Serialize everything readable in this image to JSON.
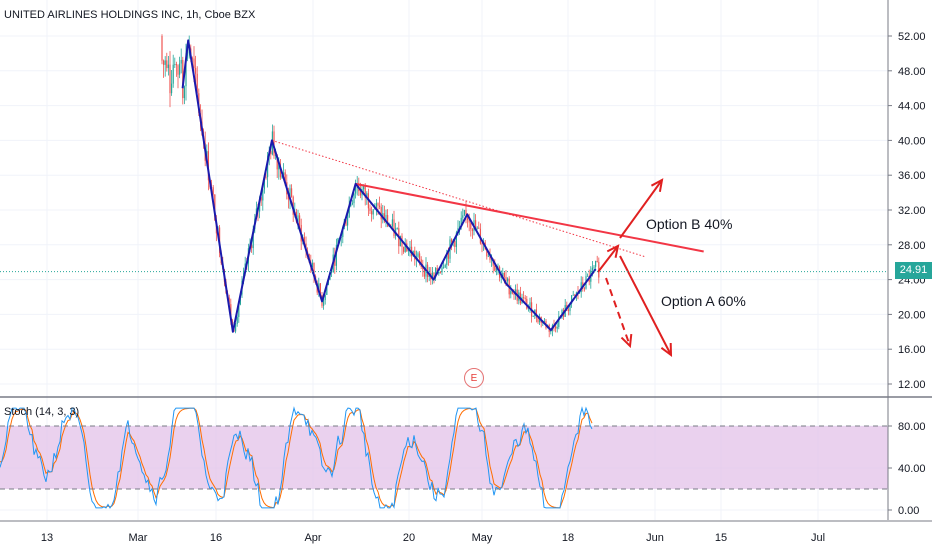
{
  "header": {
    "symbol": "UNITED AIRLINES HOLDINGS INC",
    "interval": "1h",
    "exchange": "Cboe BZX"
  },
  "last_price": "24.91",
  "earnings_marker": "E",
  "indicator": {
    "label": "Stoch (14, 3, 3)"
  },
  "annotations": {
    "option_b": "Option B 40%",
    "option_a": "Option A 60%"
  },
  "colors": {
    "pattern_line": "#1a1aad",
    "trend_line": "#f23645",
    "arrow": "#e02020",
    "price_line": "#26a69a",
    "stoch_band": "#e1bee7",
    "stoch_k": "#2196f3",
    "stoch_d": "#ff6d00"
  },
  "chart_data": [
    {
      "type": "candlestick",
      "x_ticks": [
        "13",
        "Mar",
        "16",
        "Apr",
        "20",
        "May",
        "18",
        "Jun",
        "15",
        "Jul"
      ],
      "y_ticks": [
        "12.00",
        "16.00",
        "20.00",
        "24.00",
        "28.00",
        "32.00",
        "36.00",
        "40.00",
        "44.00",
        "48.00",
        "52.00"
      ],
      "ylim": [
        10.5,
        54.5
      ],
      "last_price": 24.91,
      "pattern_path": [
        {
          "x": "Mar 9",
          "y": 46
        },
        {
          "x": "Mar 10",
          "y": 51.5
        },
        {
          "x": "Mar 11",
          "y": 47.5
        },
        {
          "x": "Mar 18",
          "y": 18
        },
        {
          "x": "Mar 25",
          "y": 40
        },
        {
          "x": "Apr 3",
          "y": 21.5
        },
        {
          "x": "Apr 9",
          "y": 35
        },
        {
          "x": "Apr 23",
          "y": 24
        },
        {
          "x": "Apr 29",
          "y": 31.5
        },
        {
          "x": "May 6",
          "y": 23.5
        },
        {
          "x": "May 14",
          "y": 18.2
        },
        {
          "x": "May 22",
          "y": 25.2
        }
      ],
      "trend_line": [
        {
          "x": "Apr 9",
          "y": 35
        },
        {
          "x": "Jun 5",
          "y": 27
        }
      ],
      "projection_line": [
        {
          "x": "Mar 25",
          "y": 40
        },
        {
          "x": "May 27",
          "y": 26.5
        }
      ]
    },
    {
      "type": "line",
      "title": "Stoch (14, 3, 3)",
      "y_ticks": [
        "0.00",
        "40.00",
        "80.00"
      ],
      "ylim": [
        -8,
        100
      ],
      "band": [
        20,
        80
      ]
    }
  ]
}
